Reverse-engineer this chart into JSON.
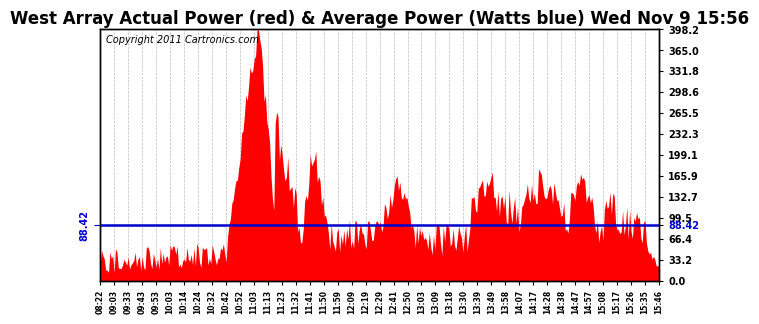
{
  "title": "West Array Actual Power (red) & Average Power (Watts blue) Wed Nov 9 15:56",
  "copyright": "Copyright 2011 Cartronics.com",
  "average_value": 88.42,
  "ymin": 0.0,
  "ymax": 398.2,
  "yticks": [
    0.0,
    33.2,
    66.4,
    99.5,
    132.7,
    165.9,
    199.1,
    232.3,
    265.5,
    298.6,
    331.8,
    365.0,
    398.2
  ],
  "bar_color": "#FF0000",
  "line_color": "#0000CC",
  "background_color": "#FFFFFF",
  "grid_color": "#AAAAAA",
  "title_fontsize": 12,
  "copyright_fontsize": 7,
  "x_labels": [
    "08:22",
    "09:03",
    "09:33",
    "09:43",
    "09:53",
    "10:03",
    "10:14",
    "10:24",
    "10:32",
    "10:42",
    "10:52",
    "11:03",
    "11:13",
    "11:23",
    "11:32",
    "11:41",
    "11:50",
    "11:59",
    "12:09",
    "12:19",
    "12:29",
    "12:41",
    "12:50",
    "13:03",
    "13:09",
    "13:18",
    "13:30",
    "13:39",
    "13:49",
    "13:58",
    "14:07",
    "14:17",
    "14:28",
    "14:38",
    "14:47",
    "14:57",
    "15:08",
    "15:17",
    "15:26",
    "15:35",
    "15:46"
  ]
}
